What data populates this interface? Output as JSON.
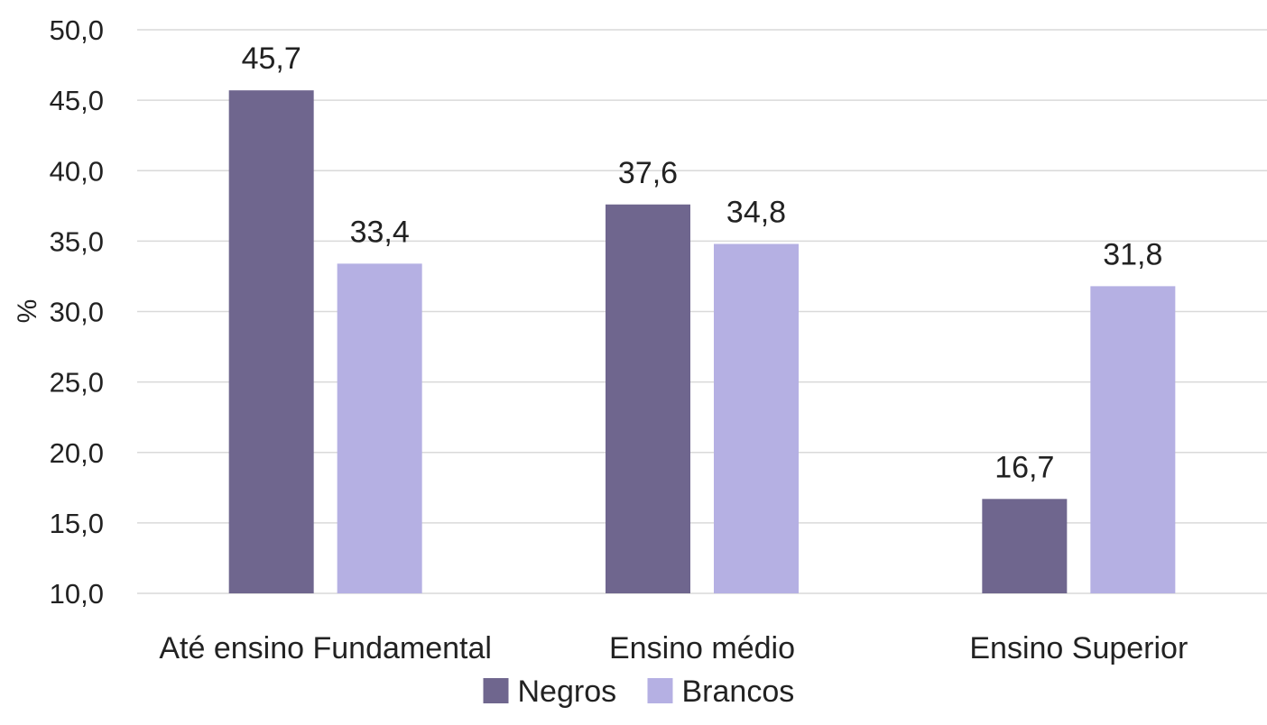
{
  "chart_data": {
    "type": "bar",
    "title": "",
    "xlabel": "",
    "ylabel": "%",
    "ylim": [
      10,
      50
    ],
    "yticks": [
      10,
      15,
      20,
      25,
      30,
      35,
      40,
      45,
      50
    ],
    "ytick_labels": [
      "10,0",
      "15,0",
      "20,0",
      "25,0",
      "30,0",
      "35,0",
      "40,0",
      "45,0",
      "50,0"
    ],
    "grid": true,
    "legend_position": "bottom",
    "categories": [
      "Até ensino Fundamental",
      "Ensino médio",
      "Ensino Superior"
    ],
    "series": [
      {
        "name": "Negros",
        "color": "#6f668e",
        "values": [
          45.7,
          37.6,
          16.7
        ],
        "labels": [
          "45,7",
          "37,6",
          "16,7"
        ]
      },
      {
        "name": "Brancos",
        "color": "#b5b0e3",
        "values": [
          33.4,
          34.8,
          31.8
        ],
        "labels": [
          "33,4",
          "34,8",
          "31,8"
        ]
      }
    ]
  }
}
